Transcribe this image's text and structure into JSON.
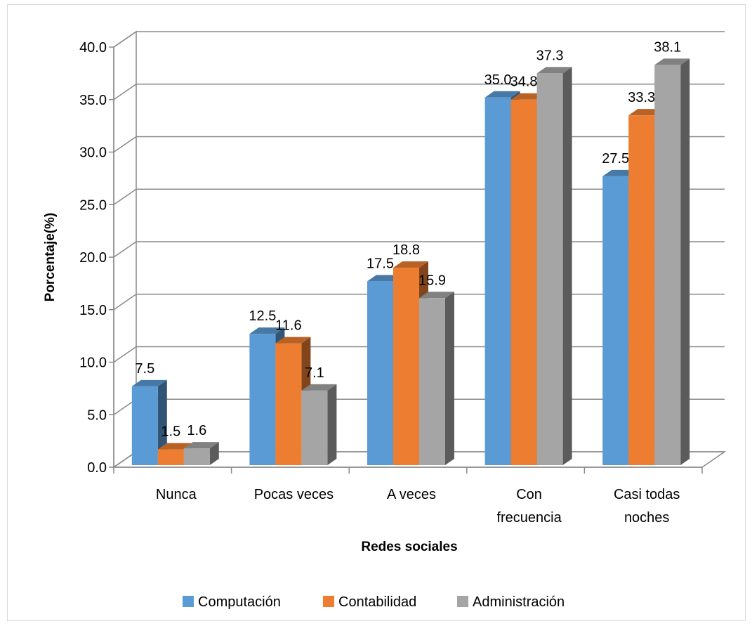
{
  "chart_data": {
    "type": "bar",
    "title": "",
    "xlabel": "Redes sociales",
    "ylabel": "Porcentaje(%)",
    "ylim": [
      0,
      40
    ],
    "yticks": [
      "0.0",
      "5.0",
      "10.0",
      "15.0",
      "20.0",
      "25.0",
      "30.0",
      "35.0",
      "40.0"
    ],
    "categories": [
      [
        "Nunca"
      ],
      [
        "Pocas veces"
      ],
      [
        "A veces"
      ],
      [
        "Con",
        "frecuencia"
      ],
      [
        "Casi todas",
        "noches"
      ]
    ],
    "series": [
      {
        "name": "Computación",
        "color": "#5b9bd5",
        "values": [
          7.5,
          12.5,
          17.5,
          35.0,
          27.5
        ],
        "labels": [
          "7.5",
          "12.5",
          "17.5",
          "35.0",
          "27.5"
        ]
      },
      {
        "name": "Contabilidad",
        "color": "#ed7d31",
        "values": [
          1.5,
          11.6,
          18.8,
          34.8,
          33.3
        ],
        "labels": [
          "1.5",
          "11.6",
          "18.8",
          "34.8",
          "33.3"
        ]
      },
      {
        "name": "Administración",
        "color": "#a5a5a5",
        "values": [
          1.6,
          7.1,
          15.9,
          37.3,
          38.1
        ],
        "labels": [
          "1.6",
          "7.1",
          "15.9",
          "37.3",
          "38.1"
        ]
      }
    ],
    "grid": true,
    "legend": "bottom"
  }
}
